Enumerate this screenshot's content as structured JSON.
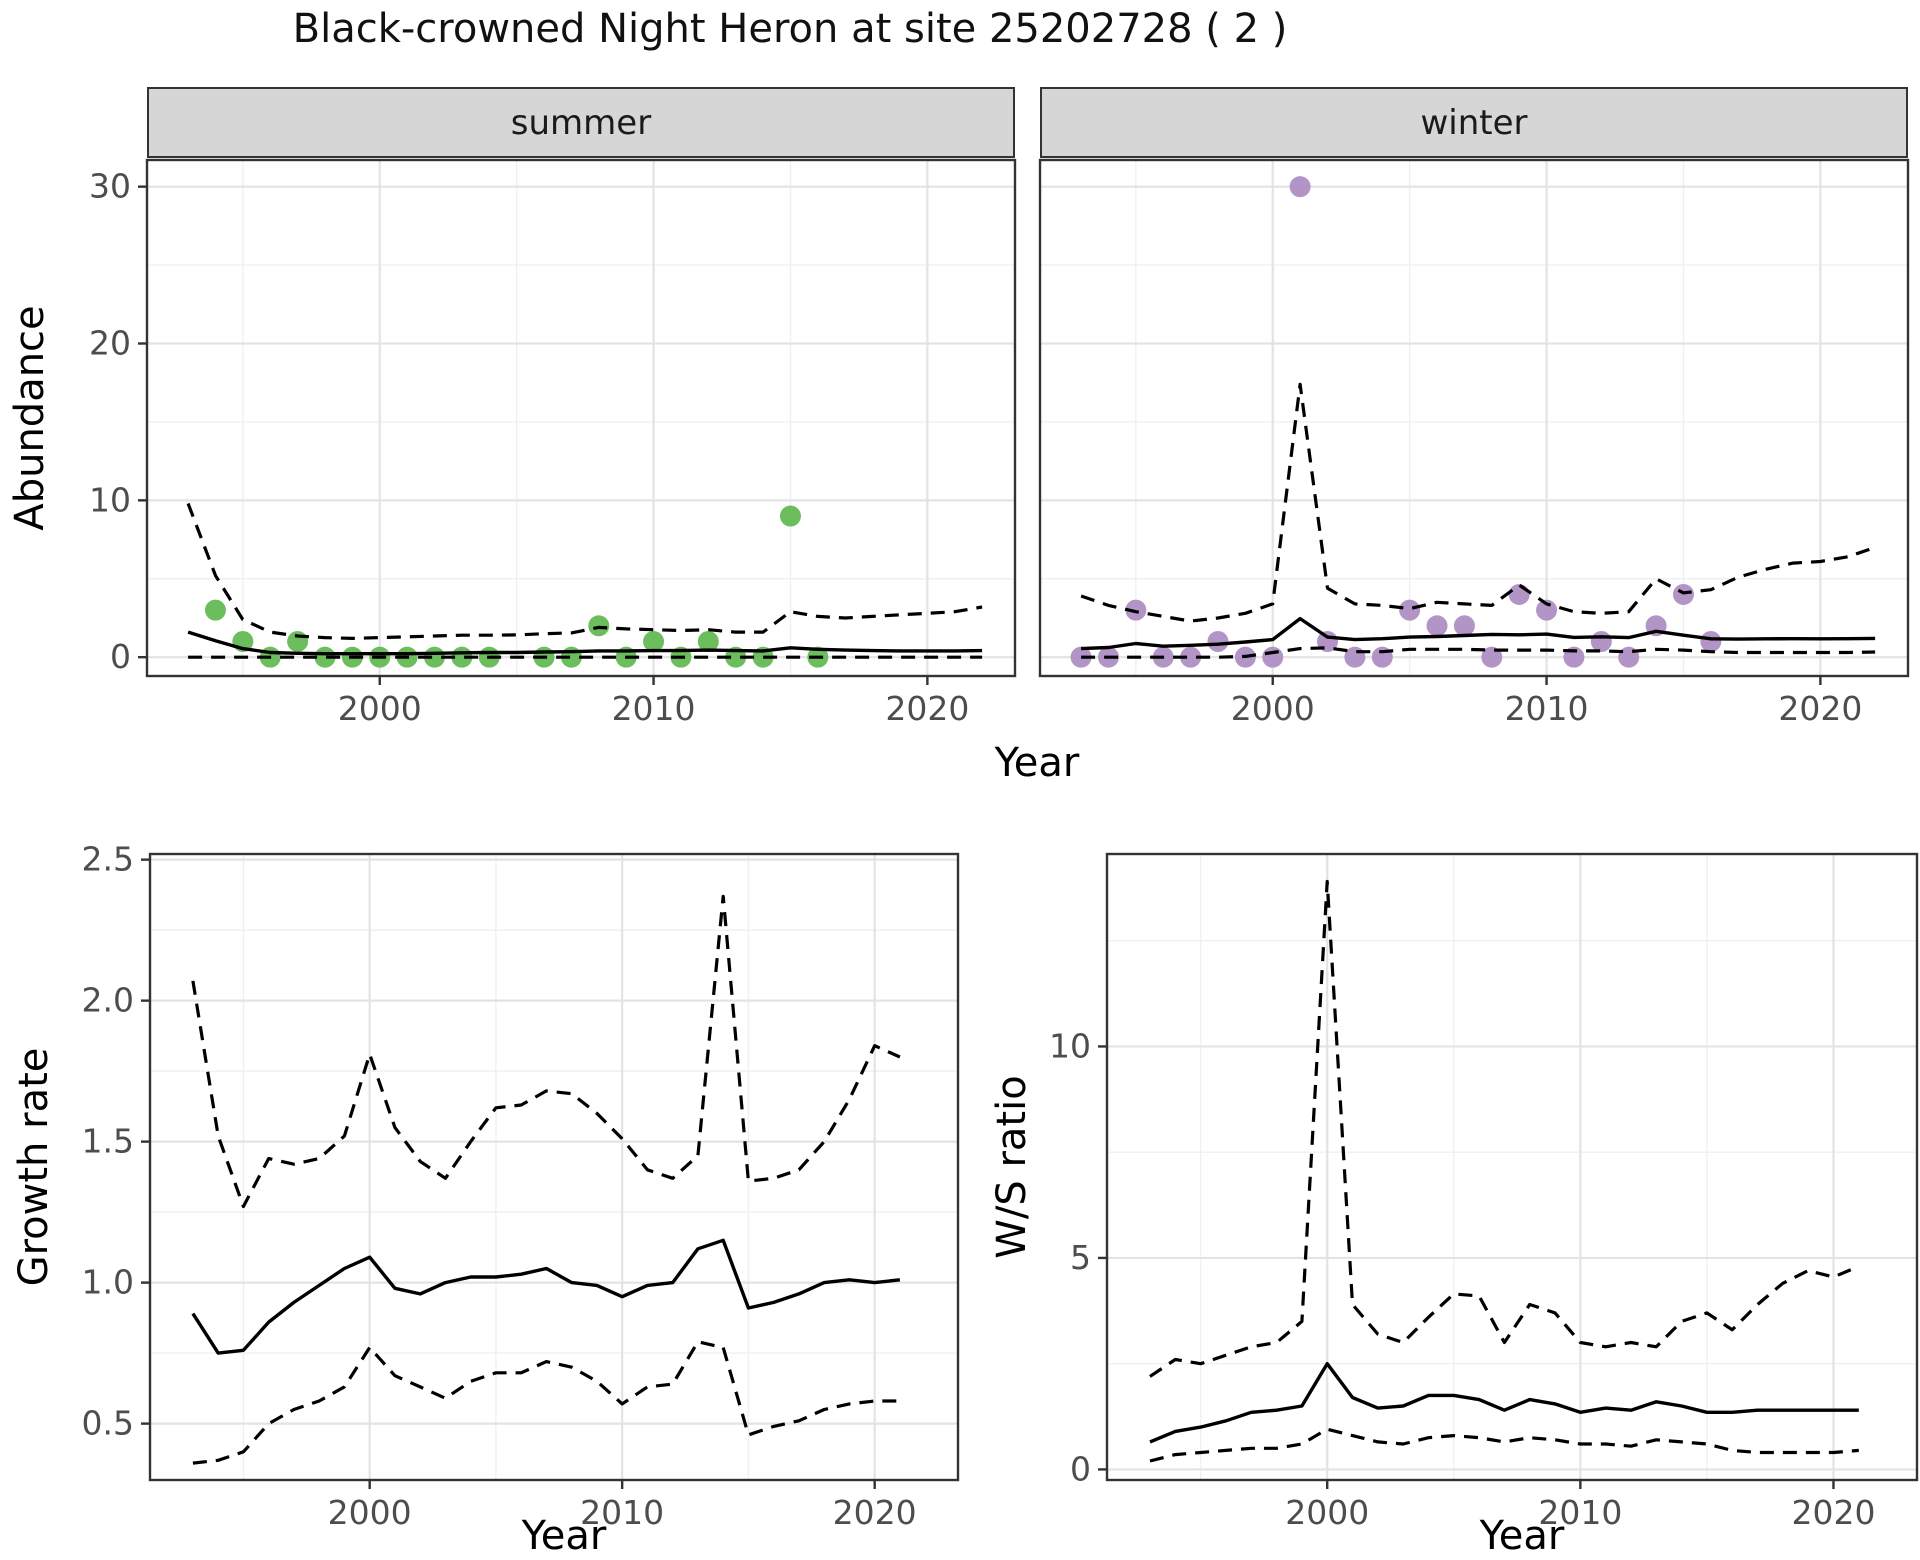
{
  "title": "Black-crowned Night Heron at site 25202728 ( 2 )",
  "facets": [
    {
      "label": "summer"
    },
    {
      "label": "winter"
    }
  ],
  "axes": {
    "top_y_label": "Abundance",
    "top_x_label": "Year",
    "bl_y_label": "Growth rate",
    "bl_x_label": "Year",
    "br_y_label": "W/S ratio",
    "br_x_label": "Year"
  },
  "colors": {
    "summer_point": "#6CBE5D",
    "winter_point": "#B294C7",
    "line": "#000000",
    "panel_border": "#333333",
    "grid_major": "#E3E3E3",
    "grid_minor": "#F0F0F0",
    "tick_label": "#4D4D4D",
    "strip_fill": "#D6D6D6"
  },
  "chart_data": [
    {
      "name": "abundance-summer",
      "type": "line",
      "facet": "summer",
      "ylabel": "Abundance",
      "xlabel": "Year",
      "xlim": [
        1991.5,
        2023.2
      ],
      "ylim": [
        -1.2,
        31.7
      ],
      "x_ticks": [
        {
          "v": 2000,
          "label": "2000"
        },
        {
          "v": 2010,
          "label": "2010"
        },
        {
          "v": 2020,
          "label": "2020"
        }
      ],
      "x_minor": [
        1995,
        2005,
        2015
      ],
      "y_ticks": [
        {
          "v": 0,
          "label": "0"
        },
        {
          "v": 10,
          "label": "10"
        },
        {
          "v": 20,
          "label": "20"
        },
        {
          "v": 30,
          "label": "30"
        }
      ],
      "y_minor": [
        5,
        15,
        25
      ],
      "point_color": "#6CBE5D",
      "points": [
        [
          1994,
          3
        ],
        [
          1995,
          1
        ],
        [
          1996,
          0
        ],
        [
          1997,
          1
        ],
        [
          1998,
          0
        ],
        [
          1999,
          0
        ],
        [
          2000,
          0
        ],
        [
          2001,
          0
        ],
        [
          2002,
          0
        ],
        [
          2003,
          0
        ],
        [
          2004,
          0
        ],
        [
          2006,
          0
        ],
        [
          2007,
          0
        ],
        [
          2008,
          2
        ],
        [
          2009,
          0
        ],
        [
          2010,
          1
        ],
        [
          2011,
          0
        ],
        [
          2012,
          1
        ],
        [
          2013,
          0
        ],
        [
          2014,
          0
        ],
        [
          2015,
          9
        ],
        [
          2016,
          0
        ]
      ],
      "years": [
        1993,
        1994,
        1995,
        1996,
        1997,
        1998,
        1999,
        2000,
        2001,
        2002,
        2003,
        2004,
        2005,
        2006,
        2007,
        2008,
        2009,
        2010,
        2011,
        2012,
        2013,
        2014,
        2015,
        2016,
        2017,
        2018,
        2019,
        2020,
        2021,
        2022
      ],
      "series": [
        {
          "name": "median",
          "dashed": false,
          "values": [
            1.6,
            1.05,
            0.55,
            0.3,
            0.25,
            0.22,
            0.22,
            0.22,
            0.22,
            0.25,
            0.28,
            0.3,
            0.3,
            0.33,
            0.35,
            0.4,
            0.4,
            0.42,
            0.42,
            0.45,
            0.42,
            0.4,
            0.6,
            0.5,
            0.45,
            0.42,
            0.4,
            0.4,
            0.4,
            0.42
          ]
        },
        {
          "name": "upper-ci",
          "dashed": true,
          "values": [
            9.8,
            5.2,
            2.4,
            1.6,
            1.35,
            1.25,
            1.2,
            1.25,
            1.3,
            1.35,
            1.4,
            1.4,
            1.42,
            1.5,
            1.55,
            1.9,
            1.8,
            1.75,
            1.7,
            1.75,
            1.6,
            1.6,
            2.9,
            2.6,
            2.5,
            2.6,
            2.7,
            2.8,
            2.9,
            3.2
          ]
        },
        {
          "name": "lower-ci",
          "dashed": true,
          "values": [
            0,
            0,
            0,
            0,
            0,
            0,
            0,
            0,
            0,
            0,
            0,
            0,
            0,
            0,
            0,
            0,
            0,
            0,
            0,
            0,
            0,
            0,
            0,
            0,
            0,
            0,
            0,
            0,
            0,
            0
          ]
        }
      ]
    },
    {
      "name": "abundance-winter",
      "type": "line",
      "facet": "winter",
      "ylabel": "Abundance",
      "xlabel": "Year",
      "xlim": [
        1991.5,
        2023.2
      ],
      "ylim": [
        -1.2,
        31.7
      ],
      "x_ticks": [
        {
          "v": 2000,
          "label": "2000"
        },
        {
          "v": 2010,
          "label": "2010"
        },
        {
          "v": 2020,
          "label": "2020"
        }
      ],
      "x_minor": [
        1995,
        2005,
        2015
      ],
      "y_ticks": [
        {
          "v": 0,
          "label": "0"
        },
        {
          "v": 10,
          "label": "10"
        },
        {
          "v": 20,
          "label": "20"
        },
        {
          "v": 30,
          "label": "30"
        }
      ],
      "y_minor": [
        5,
        15,
        25
      ],
      "point_color": "#B294C7",
      "points": [
        [
          1993,
          0
        ],
        [
          1994,
          0
        ],
        [
          1995,
          3
        ],
        [
          1996,
          0
        ],
        [
          1997,
          0
        ],
        [
          1998,
          1
        ],
        [
          1999,
          0
        ],
        [
          2000,
          0
        ],
        [
          2001,
          30
        ],
        [
          2002,
          1
        ],
        [
          2003,
          0
        ],
        [
          2004,
          0
        ],
        [
          2005,
          3
        ],
        [
          2006,
          2
        ],
        [
          2007,
          2
        ],
        [
          2008,
          0
        ],
        [
          2009,
          4
        ],
        [
          2010,
          3
        ],
        [
          2011,
          0
        ],
        [
          2012,
          1
        ],
        [
          2013,
          0
        ],
        [
          2014,
          2
        ],
        [
          2015,
          4
        ],
        [
          2016,
          1
        ]
      ],
      "years": [
        1993,
        1994,
        1995,
        1996,
        1997,
        1998,
        1999,
        2000,
        2001,
        2002,
        2003,
        2004,
        2005,
        2006,
        2007,
        2008,
        2009,
        2010,
        2011,
        2012,
        2013,
        2014,
        2015,
        2016,
        2017,
        2018,
        2019,
        2020,
        2021,
        2022
      ],
      "series": [
        {
          "name": "median",
          "dashed": false,
          "values": [
            0.55,
            0.62,
            0.87,
            0.7,
            0.76,
            0.83,
            0.97,
            1.12,
            2.46,
            1.28,
            1.12,
            1.18,
            1.28,
            1.32,
            1.38,
            1.45,
            1.43,
            1.47,
            1.26,
            1.3,
            1.25,
            1.65,
            1.4,
            1.17,
            1.15,
            1.17,
            1.18,
            1.17,
            1.18,
            1.2
          ]
        },
        {
          "name": "upper-ci",
          "dashed": true,
          "values": [
            3.9,
            3.3,
            2.9,
            2.6,
            2.3,
            2.5,
            2.8,
            3.4,
            17.4,
            4.4,
            3.4,
            3.3,
            3.1,
            3.5,
            3.4,
            3.3,
            4.6,
            3.4,
            2.9,
            2.8,
            2.9,
            5.0,
            4.1,
            4.3,
            5.1,
            5.6,
            6.0,
            6.1,
            6.4,
            7.0
          ]
        },
        {
          "name": "lower-ci",
          "dashed": true,
          "values": [
            0,
            0,
            0,
            0,
            0,
            0,
            0.05,
            0.3,
            0.55,
            0.6,
            0.35,
            0.35,
            0.5,
            0.5,
            0.5,
            0.45,
            0.45,
            0.45,
            0.4,
            0.4,
            0.35,
            0.5,
            0.45,
            0.35,
            0.3,
            0.3,
            0.3,
            0.3,
            0.3,
            0.33
          ]
        }
      ]
    },
    {
      "name": "growth-rate",
      "type": "line",
      "facet": null,
      "ylabel": "Growth rate",
      "xlabel": "Year",
      "xlim": [
        1991.3,
        2023.3
      ],
      "ylim": [
        0.3,
        2.52
      ],
      "x_ticks": [
        {
          "v": 2000,
          "label": "2000"
        },
        {
          "v": 2010,
          "label": "2010"
        },
        {
          "v": 2020,
          "label": "2020"
        }
      ],
      "x_minor": [
        1995,
        2005,
        2015
      ],
      "y_ticks": [
        {
          "v": 0.5,
          "label": "0.5"
        },
        {
          "v": 1.0,
          "label": "1.0"
        },
        {
          "v": 1.5,
          "label": "1.5"
        },
        {
          "v": 2.0,
          "label": "2.0"
        },
        {
          "v": 2.5,
          "label": "2.5"
        }
      ],
      "y_minor": [
        0.75,
        1.25,
        1.75,
        2.25
      ],
      "point_color": null,
      "points": [],
      "years": [
        1993,
        1994,
        1995,
        1996,
        1997,
        1998,
        1999,
        2000,
        2001,
        2002,
        2003,
        2004,
        2005,
        2006,
        2007,
        2008,
        2009,
        2010,
        2011,
        2012,
        2013,
        2014,
        2015,
        2016,
        2017,
        2018,
        2019,
        2020,
        2021
      ],
      "series": [
        {
          "name": "median",
          "dashed": false,
          "values": [
            0.89,
            0.75,
            0.76,
            0.86,
            0.93,
            0.99,
            1.05,
            1.09,
            0.98,
            0.96,
            1.0,
            1.02,
            1.02,
            1.03,
            1.05,
            1.0,
            0.99,
            0.95,
            0.99,
            1.0,
            1.12,
            1.15,
            0.91,
            0.93,
            0.96,
            1.0,
            1.01,
            1.0,
            1.01
          ]
        },
        {
          "name": "upper-ci",
          "dashed": true,
          "values": [
            2.07,
            1.52,
            1.27,
            1.44,
            1.42,
            1.44,
            1.52,
            1.81,
            1.55,
            1.43,
            1.37,
            1.5,
            1.62,
            1.63,
            1.68,
            1.67,
            1.6,
            1.51,
            1.4,
            1.37,
            1.45,
            2.37,
            1.36,
            1.37,
            1.4,
            1.5,
            1.65,
            1.84,
            1.8
          ]
        },
        {
          "name": "lower-ci",
          "dashed": true,
          "values": [
            0.36,
            0.37,
            0.4,
            0.5,
            0.55,
            0.58,
            0.63,
            0.77,
            0.67,
            0.63,
            0.59,
            0.65,
            0.68,
            0.68,
            0.72,
            0.7,
            0.65,
            0.57,
            0.63,
            0.64,
            0.79,
            0.77,
            0.46,
            0.49,
            0.51,
            0.55,
            0.57,
            0.58,
            0.58
          ]
        }
      ]
    },
    {
      "name": "ws-ratio",
      "type": "line",
      "facet": null,
      "ylabel": "W/S ratio",
      "xlabel": "Year",
      "xlim": [
        1991.3,
        2023.3
      ],
      "ylim": [
        -0.25,
        14.55
      ],
      "x_ticks": [
        {
          "v": 2000,
          "label": "2000"
        },
        {
          "v": 2010,
          "label": "2010"
        },
        {
          "v": 2020,
          "label": "2020"
        }
      ],
      "x_minor": [
        1995,
        2005,
        2015
      ],
      "y_ticks": [
        {
          "v": 0,
          "label": "0"
        },
        {
          "v": 5,
          "label": "5"
        },
        {
          "v": 10,
          "label": "10"
        }
      ],
      "y_minor": [
        2.5,
        7.5,
        12.5
      ],
      "point_color": null,
      "points": [],
      "years": [
        1993,
        1994,
        1995,
        1996,
        1997,
        1998,
        1999,
        2000,
        2001,
        2002,
        2003,
        2004,
        2005,
        2006,
        2007,
        2008,
        2009,
        2010,
        2011,
        2012,
        2013,
        2014,
        2015,
        2016,
        2017,
        2018,
        2019,
        2020,
        2021
      ],
      "series": [
        {
          "name": "median",
          "dashed": false,
          "values": [
            0.65,
            0.9,
            1.0,
            1.15,
            1.35,
            1.4,
            1.5,
            2.5,
            1.7,
            1.45,
            1.5,
            1.75,
            1.75,
            1.65,
            1.4,
            1.65,
            1.55,
            1.35,
            1.45,
            1.4,
            1.6,
            1.5,
            1.35,
            1.35,
            1.4,
            1.4,
            1.4,
            1.4,
            1.4
          ]
        },
        {
          "name": "upper-ci",
          "dashed": true,
          "values": [
            2.2,
            2.6,
            2.5,
            2.7,
            2.9,
            3.0,
            3.5,
            13.9,
            3.9,
            3.2,
            3.0,
            3.6,
            4.15,
            4.1,
            3.0,
            3.9,
            3.7,
            3.0,
            2.9,
            3.0,
            2.9,
            3.5,
            3.7,
            3.3,
            3.9,
            4.4,
            4.7,
            4.55,
            4.8
          ]
        },
        {
          "name": "lower-ci",
          "dashed": true,
          "values": [
            0.2,
            0.35,
            0.4,
            0.45,
            0.5,
            0.5,
            0.6,
            0.95,
            0.8,
            0.65,
            0.6,
            0.75,
            0.8,
            0.75,
            0.65,
            0.75,
            0.7,
            0.6,
            0.6,
            0.55,
            0.7,
            0.65,
            0.6,
            0.45,
            0.4,
            0.4,
            0.4,
            0.4,
            0.45
          ]
        }
      ]
    }
  ]
}
